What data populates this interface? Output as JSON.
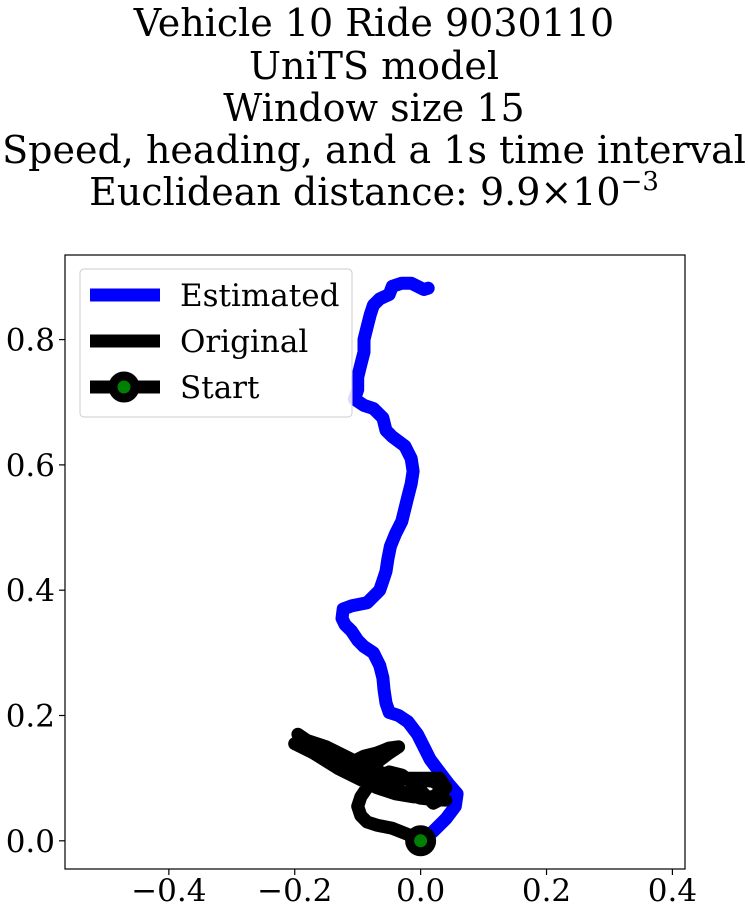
{
  "chart_data": {
    "type": "line",
    "title_lines": [
      "Vehicle 10 Ride 9030110",
      "UniTS model",
      "Window size 15",
      "Speed, heading, and a 1s time interval",
      "Euclidean distance: "
    ],
    "title_value": {
      "base": "9.9",
      "times": "×",
      "power_base": "10",
      "exponent": "−3"
    },
    "xlabel": "",
    "ylabel": "",
    "xlim": [
      -0.565,
      0.42
    ],
    "ylim": [
      -0.045,
      0.935
    ],
    "x_ticks": [
      {
        "value": -0.4,
        "label": "−0.4"
      },
      {
        "value": -0.2,
        "label": "−0.2"
      },
      {
        "value": 0.0,
        "label": "0.0"
      },
      {
        "value": 0.2,
        "label": "0.2"
      },
      {
        "value": 0.4,
        "label": "0.4"
      }
    ],
    "y_ticks": [
      {
        "value": 0.0,
        "label": "0.0"
      },
      {
        "value": 0.2,
        "label": "0.2"
      },
      {
        "value": 0.4,
        "label": "0.4"
      },
      {
        "value": 0.6,
        "label": "0.6"
      },
      {
        "value": 0.8,
        "label": "0.8"
      }
    ],
    "grid": false,
    "legend_position": "top-left",
    "series": [
      {
        "name": "Estimated",
        "color": "#0000ff",
        "points": [
          [
            0.0,
            0.0
          ],
          [
            0.02,
            0.015
          ],
          [
            0.04,
            0.035
          ],
          [
            0.055,
            0.055
          ],
          [
            0.058,
            0.075
          ],
          [
            0.045,
            0.09
          ],
          [
            0.03,
            0.11
          ],
          [
            0.015,
            0.13
          ],
          [
            0.005,
            0.15
          ],
          [
            -0.005,
            0.17
          ],
          [
            -0.02,
            0.19
          ],
          [
            -0.035,
            0.2
          ],
          [
            -0.05,
            0.205
          ],
          [
            -0.055,
            0.22
          ],
          [
            -0.058,
            0.24
          ],
          [
            -0.06,
            0.26
          ],
          [
            -0.065,
            0.28
          ],
          [
            -0.075,
            0.3
          ],
          [
            -0.09,
            0.31
          ],
          [
            -0.1,
            0.32
          ],
          [
            -0.11,
            0.335
          ],
          [
            -0.12,
            0.345
          ],
          [
            -0.125,
            0.355
          ],
          [
            -0.123,
            0.37
          ],
          [
            -0.11,
            0.375
          ],
          [
            -0.095,
            0.378
          ],
          [
            -0.085,
            0.38
          ],
          [
            -0.075,
            0.39
          ],
          [
            -0.065,
            0.4
          ],
          [
            -0.06,
            0.415
          ],
          [
            -0.055,
            0.43
          ],
          [
            -0.052,
            0.45
          ],
          [
            -0.048,
            0.47
          ],
          [
            -0.04,
            0.49
          ],
          [
            -0.03,
            0.51
          ],
          [
            -0.025,
            0.53
          ],
          [
            -0.02,
            0.55
          ],
          [
            -0.015,
            0.57
          ],
          [
            -0.012,
            0.59
          ],
          [
            -0.015,
            0.61
          ],
          [
            -0.025,
            0.63
          ],
          [
            -0.045,
            0.645
          ],
          [
            -0.055,
            0.655
          ],
          [
            -0.06,
            0.675
          ],
          [
            -0.075,
            0.69
          ],
          [
            -0.09,
            0.695
          ],
          [
            -0.105,
            0.705
          ],
          [
            -0.1,
            0.72
          ],
          [
            -0.1,
            0.74
          ],
          [
            -0.095,
            0.76
          ],
          [
            -0.09,
            0.78
          ],
          [
            -0.09,
            0.8
          ],
          [
            -0.085,
            0.82
          ],
          [
            -0.08,
            0.84
          ],
          [
            -0.075,
            0.855
          ],
          [
            -0.065,
            0.865
          ],
          [
            -0.05,
            0.872
          ],
          [
            -0.045,
            0.885
          ],
          [
            -0.03,
            0.89
          ],
          [
            -0.015,
            0.89
          ],
          [
            -0.005,
            0.885
          ],
          [
            0.005,
            0.88
          ],
          [
            0.012,
            0.882
          ]
        ]
      },
      {
        "name": "Original",
        "color": "#000000",
        "points": [
          [
            0.0,
            0.0
          ],
          [
            -0.02,
            0.01
          ],
          [
            -0.045,
            0.02
          ],
          [
            -0.07,
            0.025
          ],
          [
            -0.085,
            0.03
          ],
          [
            -0.095,
            0.04
          ],
          [
            -0.1,
            0.055
          ],
          [
            -0.095,
            0.07
          ],
          [
            -0.085,
            0.085
          ],
          [
            -0.07,
            0.1
          ],
          [
            -0.05,
            0.11
          ],
          [
            -0.03,
            0.105
          ],
          [
            -0.01,
            0.09
          ],
          [
            0.005,
            0.075
          ],
          [
            0.02,
            0.06
          ],
          [
            0.035,
            0.068
          ],
          [
            0.035,
            0.085
          ],
          [
            0.02,
            0.095
          ],
          [
            0.0,
            0.097
          ],
          [
            -0.02,
            0.098
          ],
          [
            -0.04,
            0.1
          ],
          [
            -0.06,
            0.108
          ],
          [
            -0.09,
            0.12
          ],
          [
            -0.12,
            0.135
          ],
          [
            -0.15,
            0.15
          ],
          [
            -0.18,
            0.16
          ],
          [
            -0.195,
            0.17
          ],
          [
            -0.17,
            0.15
          ],
          [
            -0.14,
            0.13
          ],
          [
            -0.11,
            0.115
          ],
          [
            -0.08,
            0.1
          ],
          [
            -0.05,
            0.085
          ],
          [
            -0.02,
            0.075
          ],
          [
            0.0,
            0.068
          ],
          [
            0.02,
            0.066
          ],
          [
            0.04,
            0.065
          ],
          [
            0.015,
            0.07
          ],
          [
            -0.01,
            0.072
          ],
          [
            -0.035,
            0.078
          ],
          [
            -0.065,
            0.09
          ],
          [
            -0.09,
            0.105
          ],
          [
            -0.11,
            0.125
          ],
          [
            -0.09,
            0.135
          ],
          [
            -0.07,
            0.14
          ],
          [
            -0.05,
            0.148
          ],
          [
            -0.035,
            0.15
          ],
          [
            -0.05,
            0.14
          ],
          [
            -0.07,
            0.125
          ],
          [
            -0.095,
            0.11
          ],
          [
            -0.13,
            0.122
          ],
          [
            -0.165,
            0.14
          ],
          [
            -0.2,
            0.155
          ],
          [
            -0.17,
            0.14
          ],
          [
            -0.13,
            0.115
          ],
          [
            -0.1,
            0.1
          ],
          [
            -0.07,
            0.085
          ],
          [
            -0.04,
            0.075
          ],
          [
            -0.01,
            0.07
          ],
          [
            0.02,
            0.07
          ],
          [
            0.04,
            0.085
          ],
          [
            0.03,
            0.1
          ],
          [
            0.0,
            0.1
          ],
          [
            -0.03,
            0.1
          ],
          [
            -0.06,
            0.098
          ]
        ]
      }
    ],
    "start": {
      "name": "Start",
      "x": 0.0,
      "y": 0.0,
      "edge_color": "#000000",
      "fill_color": "#008000"
    }
  }
}
